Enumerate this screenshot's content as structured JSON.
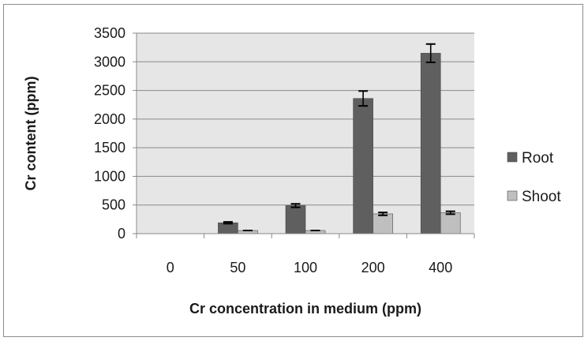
{
  "chart_data": {
    "type": "bar",
    "categories": [
      "0",
      "50",
      "100",
      "200",
      "400"
    ],
    "series": [
      {
        "name": "Root",
        "color": "#5f5f5f",
        "values": [
          0,
          190,
          490,
          2360,
          3150
        ],
        "errors": [
          0,
          15,
          30,
          130,
          160
        ]
      },
      {
        "name": "Shoot",
        "color": "#bfbfbf",
        "values": [
          0,
          55,
          55,
          345,
          365
        ],
        "errors": [
          0,
          0,
          0,
          25,
          25
        ]
      }
    ],
    "title": "",
    "xlabel": "Cr concentration in medium (ppm)",
    "ylabel": "Cr content (ppm)",
    "ylim": [
      0,
      3500
    ],
    "yticks": [
      "0",
      "500",
      "1000",
      "1500",
      "2000",
      "2500",
      "3000",
      "3500"
    ],
    "grid": true,
    "legend_position": "right",
    "plot_background": "#e6e6e6"
  }
}
